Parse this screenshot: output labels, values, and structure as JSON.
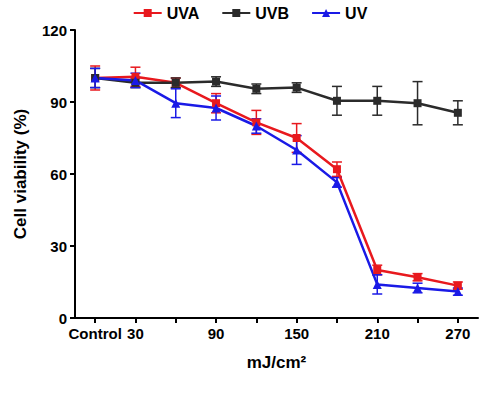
{
  "chart_data": {
    "type": "line",
    "x_label": "mJ/cm²",
    "y_label": "Cell viability (%)",
    "categories": [
      "Control",
      "30",
      null,
      "90",
      null,
      "150",
      null,
      "210",
      null,
      "270"
    ],
    "ylim": [
      0,
      120
    ],
    "yticks": [
      0,
      30,
      60,
      90,
      120
    ],
    "grid": false,
    "legend": "top",
    "series": [
      {
        "name": "UVA",
        "color": "#e8191e",
        "marker": "square",
        "values": [
          100,
          100.5,
          98,
          89.5,
          81.5,
          75,
          62,
          20,
          17,
          13.5
        ],
        "errors": [
          5,
          4,
          2,
          4,
          5,
          6,
          3,
          2,
          1.5,
          1.5
        ]
      },
      {
        "name": "UVB",
        "color": "#2b2b2b",
        "marker": "square",
        "values": [
          100,
          98,
          98,
          98.5,
          95.5,
          96,
          90.5,
          90.5,
          89.5,
          85.5
        ],
        "errors": [
          4,
          2,
          2,
          2,
          2,
          2,
          6,
          6,
          9,
          5
        ]
      },
      {
        "name": "UV",
        "color": "#1a1ae6",
        "marker": "triangle",
        "values": [
          100,
          99,
          89.5,
          87.5,
          80,
          70,
          56.5,
          14,
          12.5,
          11
        ],
        "errors": [
          4,
          3,
          6,
          5,
          3,
          6,
          2,
          4,
          2,
          1.5
        ]
      }
    ]
  }
}
